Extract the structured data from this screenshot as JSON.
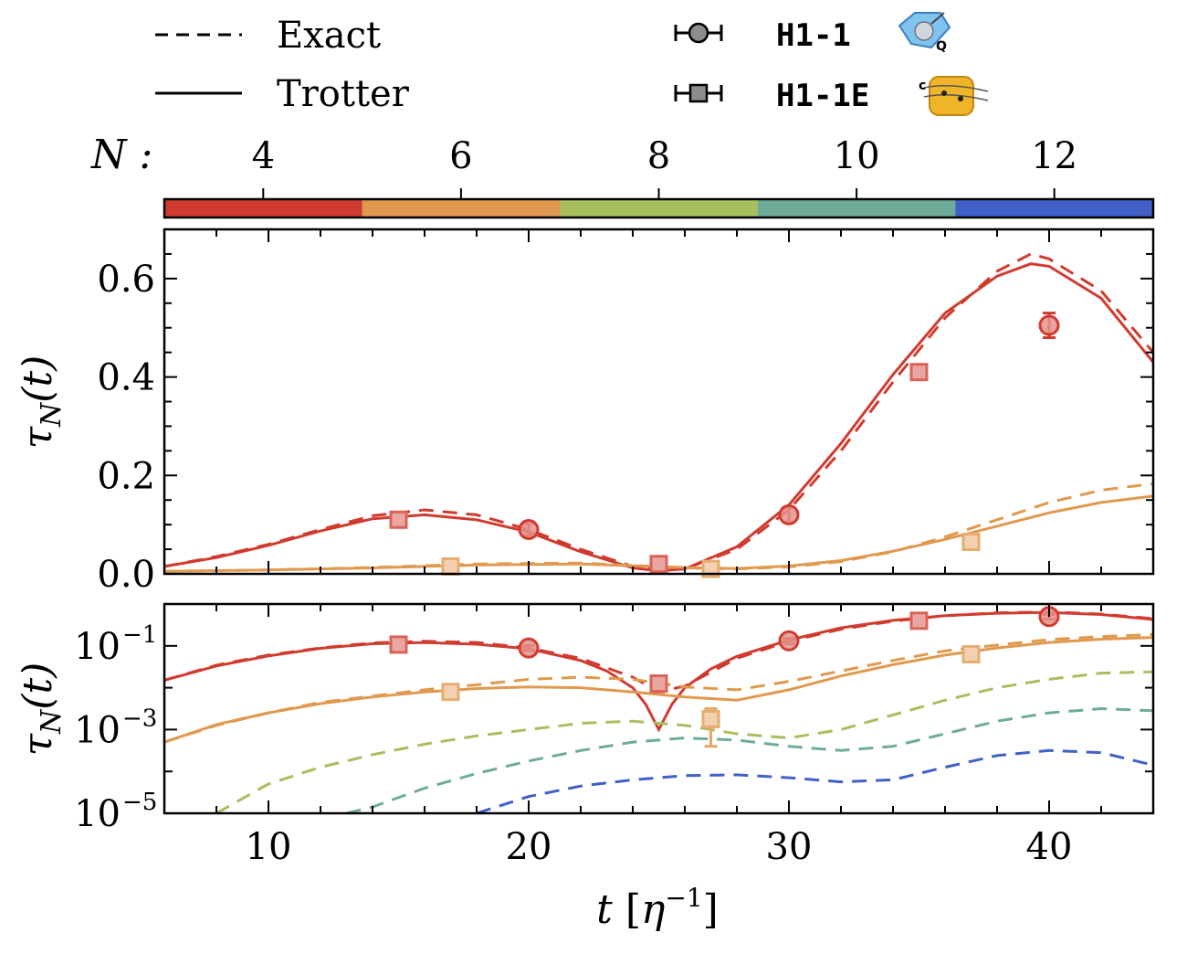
{
  "legend": {
    "exact_label": "Exact",
    "trotter_label": "Trotter",
    "h1_label": "H1-1",
    "h1e_label": "H1-1E"
  },
  "colorbar": {
    "label": "N :",
    "ticks": [
      "4",
      "6",
      "8",
      "10",
      "12"
    ],
    "colors": [
      "#d03b2f",
      "#e0994e",
      "#a8bf5e",
      "#6fab99",
      "#4060c8"
    ]
  },
  "chart_data": [
    {
      "type": "line",
      "scale": "linear",
      "xlabel": "t [η⁻¹]",
      "ylabel": "τ_N(t)",
      "xlim": [
        6,
        44
      ],
      "ylim": [
        0,
        0.7
      ],
      "yticks": [
        "0.0",
        "0.2",
        "0.4",
        "0.6"
      ],
      "series": [
        {
          "N": 4,
          "kind": "Exact",
          "color": "#d03b2f",
          "x": [
            6,
            8,
            10,
            12,
            14,
            16,
            18,
            20,
            22,
            24,
            25,
            26,
            28,
            30,
            32,
            34,
            36,
            38,
            39.3,
            40,
            42,
            44
          ],
          "y": [
            0.015,
            0.035,
            0.06,
            0.09,
            0.118,
            0.13,
            0.12,
            0.09,
            0.05,
            0.015,
            0.008,
            0.01,
            0.05,
            0.13,
            0.25,
            0.39,
            0.52,
            0.615,
            0.65,
            0.64,
            0.575,
            0.45
          ]
        },
        {
          "N": 4,
          "kind": "Trotter",
          "color": "#d03b2f",
          "x": [
            6,
            8,
            10,
            12,
            14,
            16,
            18,
            20,
            22,
            24,
            25,
            26,
            28,
            30,
            32,
            34,
            36,
            38,
            39.3,
            40,
            42,
            44
          ],
          "y": [
            0.015,
            0.033,
            0.058,
            0.087,
            0.112,
            0.12,
            0.11,
            0.085,
            0.045,
            0.012,
            0.006,
            0.01,
            0.055,
            0.14,
            0.265,
            0.405,
            0.53,
            0.605,
            0.63,
            0.625,
            0.56,
            0.43
          ]
        },
        {
          "N": 6,
          "kind": "Exact",
          "color": "#e0994e",
          "x": [
            6,
            10,
            14,
            18,
            22,
            26,
            28,
            30,
            32,
            34,
            36,
            38,
            40,
            42,
            44
          ],
          "y": [
            0.005,
            0.008,
            0.013,
            0.02,
            0.022,
            0.012,
            0.01,
            0.014,
            0.025,
            0.045,
            0.075,
            0.11,
            0.145,
            0.17,
            0.183
          ]
        },
        {
          "N": 6,
          "kind": "Trotter",
          "color": "#e0994e",
          "x": [
            6,
            10,
            14,
            18,
            22,
            26,
            28,
            30,
            32,
            34,
            36,
            38,
            40,
            42,
            44
          ],
          "y": [
            0.005,
            0.008,
            0.012,
            0.018,
            0.02,
            0.013,
            0.011,
            0.016,
            0.027,
            0.046,
            0.07,
            0.097,
            0.124,
            0.145,
            0.158
          ]
        }
      ],
      "points": [
        {
          "device": "H1-1E",
          "N": 4,
          "x": 15,
          "y": 0.11,
          "err": 0.012
        },
        {
          "device": "H1-1",
          "N": 4,
          "x": 20,
          "y": 0.09,
          "err": 0.012
        },
        {
          "device": "H1-1E",
          "N": 4,
          "x": 25,
          "y": 0.02,
          "err": 0.01
        },
        {
          "device": "H1-1",
          "N": 4,
          "x": 30,
          "y": 0.12,
          "err": 0.015
        },
        {
          "device": "H1-1E",
          "N": 4,
          "x": 35,
          "y": 0.41,
          "err": 0.014
        },
        {
          "device": "H1-1",
          "N": 4,
          "x": 40,
          "y": 0.505,
          "err": 0.025
        },
        {
          "device": "H1-1E",
          "N": 6,
          "x": 17,
          "y": 0.015,
          "err": 0.01
        },
        {
          "device": "H1-1E",
          "N": 6,
          "x": 27,
          "y": 0.01,
          "err": 0.01
        },
        {
          "device": "H1-1E",
          "N": 6,
          "x": 37,
          "y": 0.065,
          "err": 0.012
        }
      ]
    },
    {
      "type": "line",
      "scale": "log",
      "xlabel": "t [η⁻¹]",
      "ylabel": "τ_N(t)",
      "xlim": [
        6,
        44
      ],
      "ylim_log10": [
        -5,
        0
      ],
      "xticks": [
        "10",
        "20",
        "30",
        "40"
      ],
      "yticks": [
        {
          "base": "10",
          "exp": "−1"
        },
        {
          "base": "10",
          "exp": "−3"
        },
        {
          "base": "10",
          "exp": "−5"
        }
      ],
      "series": [
        {
          "N": 4,
          "kind": "Exact",
          "color": "#d03b2f",
          "x": [
            6,
            8,
            10,
            12,
            14,
            16,
            18,
            20,
            22,
            24,
            25,
            26,
            28,
            30,
            32,
            34,
            36,
            38,
            40,
            42,
            44
          ],
          "log10y": [
            -1.82,
            -1.46,
            -1.22,
            -1.05,
            -0.93,
            -0.89,
            -0.92,
            -1.05,
            -1.3,
            -1.75,
            -2.1,
            -1.96,
            -1.3,
            -0.89,
            -0.6,
            -0.41,
            -0.28,
            -0.21,
            -0.19,
            -0.24,
            -0.35
          ]
        },
        {
          "N": 4,
          "kind": "Trotter",
          "color": "#d03b2f",
          "x": [
            6,
            8,
            10,
            12,
            14,
            16,
            18,
            20,
            22,
            23,
            24,
            24.5,
            25,
            25.5,
            26,
            27,
            28,
            30,
            32,
            34,
            36,
            38,
            40,
            42,
            44
          ],
          "log10y": [
            -1.82,
            -1.48,
            -1.24,
            -1.06,
            -0.95,
            -0.92,
            -0.96,
            -1.07,
            -1.35,
            -1.6,
            -2.0,
            -2.4,
            -3.0,
            -2.4,
            -2.0,
            -1.55,
            -1.25,
            -0.86,
            -0.57,
            -0.39,
            -0.28,
            -0.22,
            -0.2,
            -0.25,
            -0.37
          ]
        },
        {
          "N": 6,
          "kind": "Exact",
          "color": "#e0994e",
          "x": [
            6,
            8,
            10,
            12,
            14,
            16,
            18,
            20,
            22,
            24,
            26,
            28,
            30,
            32,
            34,
            36,
            38,
            40,
            42,
            44
          ],
          "log10y": [
            -3.3,
            -2.9,
            -2.6,
            -2.35,
            -2.2,
            -2.05,
            -1.93,
            -1.8,
            -1.75,
            -1.8,
            -1.98,
            -2.05,
            -1.85,
            -1.6,
            -1.35,
            -1.12,
            -0.98,
            -0.85,
            -0.78,
            -0.73
          ]
        },
        {
          "N": 6,
          "kind": "Trotter",
          "color": "#e0994e",
          "x": [
            6,
            8,
            10,
            12,
            14,
            16,
            18,
            20,
            22,
            24,
            26,
            28,
            30,
            32,
            34,
            36,
            38,
            40,
            42,
            44
          ],
          "log10y": [
            -3.3,
            -2.88,
            -2.6,
            -2.38,
            -2.22,
            -2.1,
            -2.02,
            -1.98,
            -2.0,
            -2.1,
            -2.22,
            -2.3,
            -2.05,
            -1.72,
            -1.45,
            -1.22,
            -1.05,
            -0.92,
            -0.84,
            -0.8
          ]
        },
        {
          "N": 8,
          "kind": "Exact",
          "color": "#a8bf5e",
          "x": [
            8,
            10,
            12,
            14,
            16,
            18,
            20,
            22,
            24,
            26,
            28,
            30,
            32,
            34,
            36,
            38,
            40,
            42,
            44
          ],
          "log10y": [
            -5.0,
            -4.3,
            -3.9,
            -3.6,
            -3.35,
            -3.15,
            -3.0,
            -2.85,
            -2.8,
            -2.9,
            -3.1,
            -3.2,
            -3.0,
            -2.65,
            -2.3,
            -2.0,
            -1.8,
            -1.65,
            -1.62
          ]
        },
        {
          "N": 10,
          "kind": "Exact",
          "color": "#6fab99",
          "x": [
            13,
            14,
            16,
            18,
            20,
            22,
            24,
            26,
            28,
            30,
            32,
            34,
            36,
            38,
            40,
            42,
            44
          ],
          "log10y": [
            -5.0,
            -4.85,
            -4.4,
            -4.05,
            -3.75,
            -3.5,
            -3.3,
            -3.2,
            -3.25,
            -3.4,
            -3.5,
            -3.4,
            -3.1,
            -2.8,
            -2.6,
            -2.5,
            -2.55
          ]
        },
        {
          "N": 12,
          "kind": "Exact",
          "color": "#4060c8",
          "x": [
            18,
            20,
            22,
            24,
            26,
            28,
            30,
            32,
            34,
            36,
            38,
            40,
            42,
            44
          ],
          "log10y": [
            -5.0,
            -4.6,
            -4.35,
            -4.2,
            -4.1,
            -4.08,
            -4.15,
            -4.25,
            -4.2,
            -3.9,
            -3.62,
            -3.5,
            -3.55,
            -3.85
          ]
        }
      ],
      "points": [
        {
          "device": "H1-1E",
          "N": 4,
          "x": 15,
          "log10y": -0.97,
          "errlo": -1.03,
          "errhi": -0.92
        },
        {
          "device": "H1-1",
          "N": 4,
          "x": 20,
          "log10y": -1.05,
          "errlo": -1.12,
          "errhi": -0.99
        },
        {
          "device": "H1-1E",
          "N": 4,
          "x": 25,
          "log10y": -1.9,
          "errlo": -2.1,
          "errhi": -1.75
        },
        {
          "device": "H1-1",
          "N": 4,
          "x": 30,
          "log10y": -0.88,
          "errlo": -0.95,
          "errhi": -0.82
        },
        {
          "device": "H1-1E",
          "N": 4,
          "x": 35,
          "log10y": -0.4,
          "errlo": -0.45,
          "errhi": -0.36
        },
        {
          "device": "H1-1",
          "N": 4,
          "x": 40,
          "log10y": -0.3,
          "errlo": -0.36,
          "errhi": -0.25
        },
        {
          "device": "H1-1E",
          "N": 6,
          "x": 17,
          "log10y": -2.1,
          "errlo": -2.25,
          "errhi": -2.0
        },
        {
          "device": "H1-1E",
          "N": 6,
          "x": 27,
          "log10y": -2.75,
          "errlo": -3.4,
          "errhi": -2.5
        },
        {
          "device": "H1-1E",
          "N": 6,
          "x": 37,
          "log10y": -1.2,
          "errlo": -1.28,
          "errhi": -1.12
        }
      ]
    }
  ]
}
